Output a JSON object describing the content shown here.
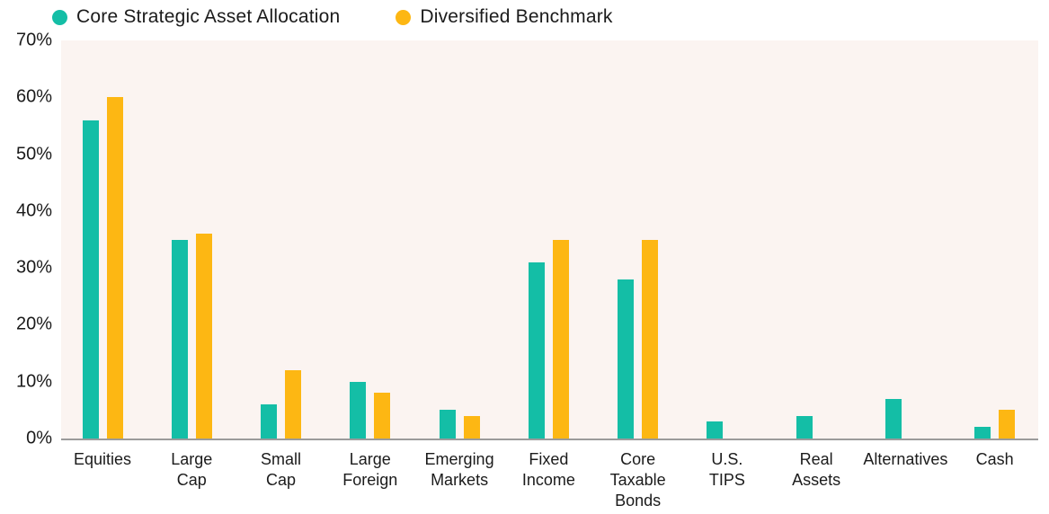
{
  "legend": {
    "core": {
      "label": "Core Strategic Asset Allocation",
      "color": "#14bea6"
    },
    "benchmark": {
      "label": "Diversified Benchmark",
      "color": "#fdb713"
    }
  },
  "colors": {
    "core_teal": "#14bea6",
    "benchmark_yellow": "#fdb713",
    "plot_background": "#fbf4f1",
    "axis_line": "#9b9b9b",
    "text": "#1b1b1b"
  },
  "chart_data": {
    "type": "bar",
    "title": "",
    "xlabel": "",
    "ylabel": "",
    "ylim": [
      0,
      70
    ],
    "grid": false,
    "legend_position": "top",
    "y_ticks": [
      "70%",
      "60%",
      "50%",
      "40%",
      "30%",
      "20%",
      "10%",
      "0%"
    ],
    "categories": [
      "Equities",
      "Large Cap",
      "Small Cap",
      "Large Foreign",
      "Emerging Markets",
      "Fixed Income",
      "Core Taxable Bonds",
      "U.S. TIPS",
      "Real Assets",
      "Alternatives",
      "Cash"
    ],
    "category_label_lines": [
      [
        "Equities"
      ],
      [
        "Large",
        "Cap"
      ],
      [
        "Small",
        "Cap"
      ],
      [
        "Large",
        "Foreign"
      ],
      [
        "Emerging",
        "Markets"
      ],
      [
        "Fixed",
        "Income"
      ],
      [
        "Core",
        "Taxable",
        "Bonds"
      ],
      [
        "U.S.",
        "TIPS"
      ],
      [
        "Real",
        "Assets"
      ],
      [
        "Alternatives"
      ],
      [
        "Cash"
      ]
    ],
    "series": [
      {
        "name": "Core Strategic Asset Allocation",
        "color": "#14bea6",
        "values": [
          56,
          35,
          6,
          10,
          5,
          31,
          28,
          3,
          4,
          7,
          2
        ]
      },
      {
        "name": "Diversified Benchmark",
        "color": "#fdb713",
        "values": [
          60,
          36,
          12,
          8,
          4,
          35,
          35,
          0,
          0,
          0,
          5
        ]
      }
    ]
  }
}
